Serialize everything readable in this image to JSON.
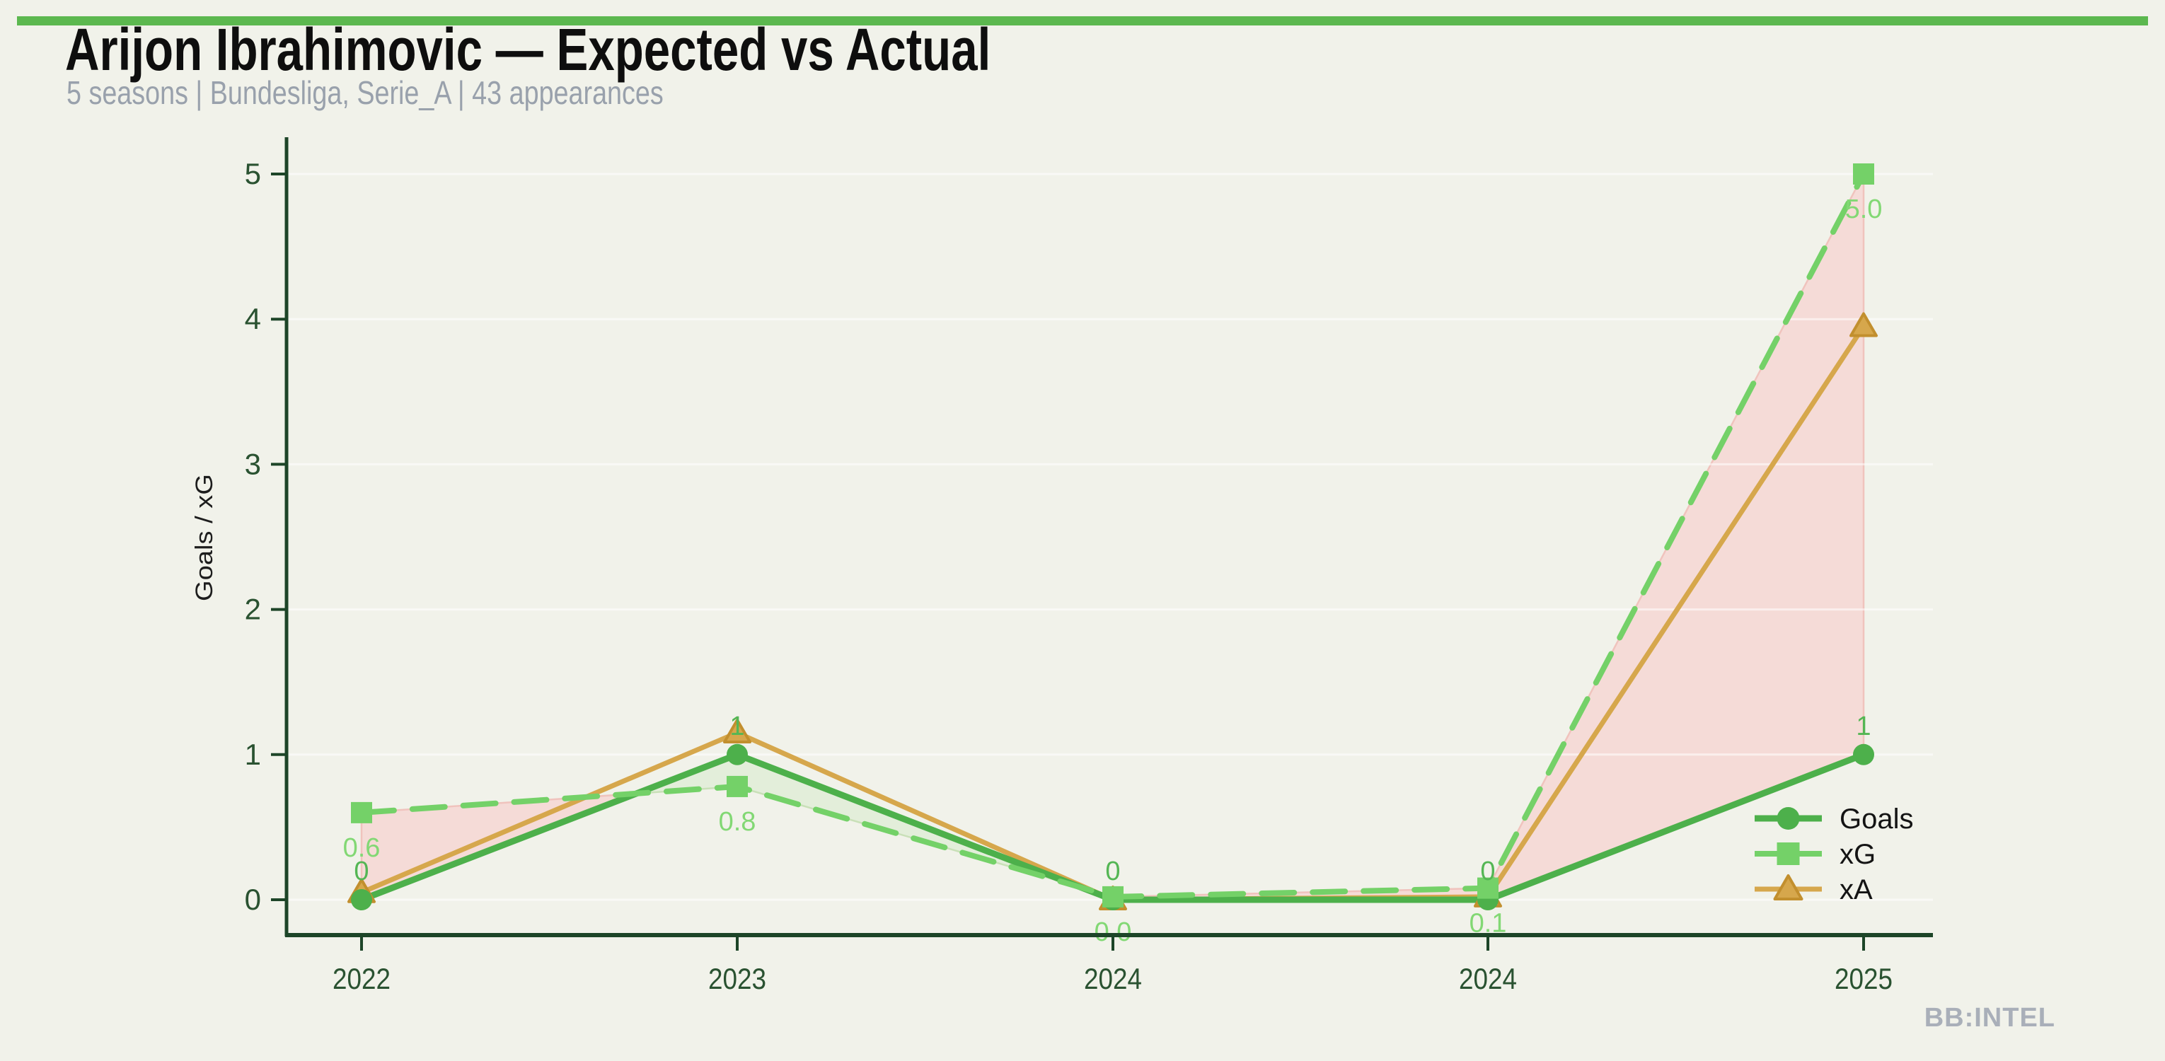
{
  "watermark": "BB:INTEL",
  "colors": {
    "background": "#f1f2ea",
    "accent_bar": "#5cb84f",
    "axis": "#1d4528",
    "tick_text": "#2a5231",
    "goals": "#4db04b",
    "xg": "#74d168",
    "xa": "#d6a74c",
    "xa_edge": "#c28f2e",
    "fill_over": "#e3eeda",
    "fill_under": "#f5dbd7",
    "fill_under_edge": "#f0c3bd",
    "fill_over_edge": "#c9e0b8",
    "goals_label": "#54b654",
    "xg_label": "#82d874",
    "grid": "rgba(255,255,255,0.55)",
    "legend_text": "#141414",
    "subtitle_text": "#99a1ac",
    "watermark_text": "#a9afb9"
  },
  "chart_data": {
    "type": "line",
    "title": "Arijon Ibrahimovic — Expected vs Actual",
    "subtitle": "5 seasons | Bundesliga, Serie_A | 43 appearances",
    "categories": [
      "2022",
      "2023",
      "2024",
      "2024",
      "2025"
    ],
    "ylabel": "Goals / xG",
    "xlabel": "",
    "ylim": [
      0,
      5
    ],
    "yticks": [
      0,
      1,
      2,
      3,
      4,
      5
    ],
    "grid": true,
    "legend_position": "lower right",
    "series": [
      {
        "name": "Goals",
        "marker": "circle",
        "line": "solid",
        "color": "#4db04b",
        "values": [
          0,
          1,
          0,
          0,
          1
        ],
        "labels": [
          "0",
          "1",
          "0",
          "0",
          "1"
        ],
        "label_side": "above",
        "label_color": "#54b654"
      },
      {
        "name": "xG",
        "marker": "square",
        "line": "dashed",
        "color": "#74d168",
        "values": [
          0.6,
          0.78,
          0.02,
          0.08,
          5.0
        ],
        "labels": [
          "0.6",
          "0.8",
          "0.0",
          "0.1",
          "5.0"
        ],
        "label_side": "below",
        "label_color": "#82d874"
      },
      {
        "name": "xA",
        "marker": "triangle",
        "line": "solid",
        "color": "#d6a74c",
        "values": [
          0.05,
          1.15,
          0.0,
          0.02,
          3.95
        ],
        "labels": null,
        "label_side": null,
        "label_color": null
      }
    ],
    "fill_between": {
      "upper": "xG",
      "lower": "Goals",
      "color_when_upper_greater": "#f5dbd7",
      "color_when_lower_greater": "#e3eeda"
    }
  }
}
